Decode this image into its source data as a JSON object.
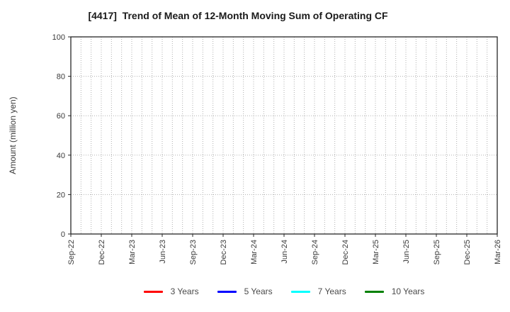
{
  "chart_data": {
    "type": "line",
    "title": "[4417]  Trend of Mean of 12-Month Moving Sum of Operating CF",
    "xlabel": "",
    "ylabel": "Amount (million yen)",
    "x_tick_labels": [
      "Sep-22",
      "Dec-22",
      "Mar-23",
      "Jun-23",
      "Sep-23",
      "Dec-23",
      "Mar-24",
      "Jun-24",
      "Sep-24",
      "Dec-24",
      "Mar-25",
      "Jun-25",
      "Sep-25",
      "Dec-25",
      "Mar-26"
    ],
    "x_months_total": 42,
    "months_per_labeled_tick": 3,
    "y_ticks": [
      0,
      20,
      40,
      60,
      80,
      100
    ],
    "ylim": [
      0,
      100
    ],
    "grid": {
      "style": "dotted",
      "color": "#b0b0b0",
      "vertical_every_months": 1,
      "horizontal_every_units": 20
    },
    "legend_position": "bottom-center",
    "series": [
      {
        "name": "3 Years",
        "color": "#ff0000",
        "values": []
      },
      {
        "name": "5 Years",
        "color": "#0000ff",
        "values": []
      },
      {
        "name": "7 Years",
        "color": "#00ffff",
        "values": []
      },
      {
        "name": "10 Years",
        "color": "#008000",
        "values": []
      }
    ],
    "note": "plot area is empty - no data lines are drawn",
    "axis_color": "#262626",
    "tick_label_color": "#3a3a3a"
  }
}
